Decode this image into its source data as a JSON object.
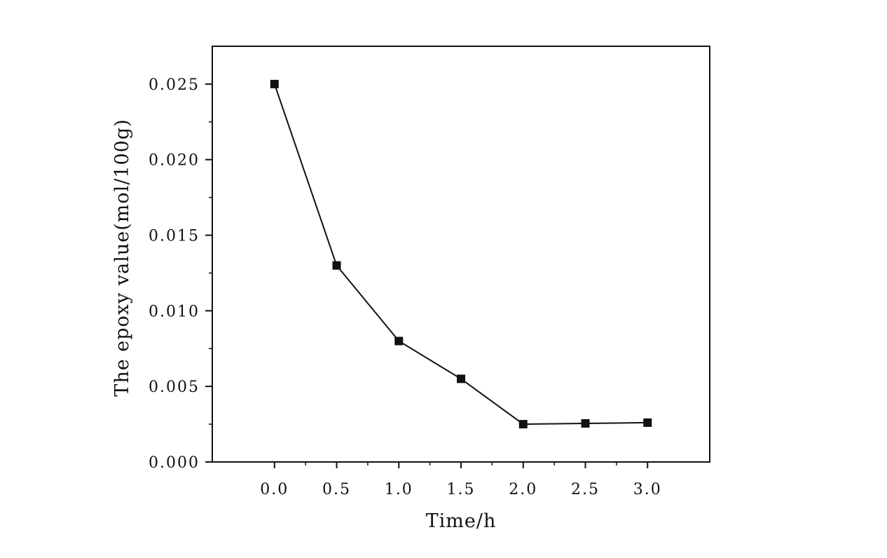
{
  "chart_data": {
    "type": "line",
    "title": "",
    "xlabel": "Time/h",
    "ylabel": "The epoxy value(mol/100g)",
    "xlim": [
      -0.5,
      3.5
    ],
    "ylim": [
      0,
      0.0275
    ],
    "xticks": [
      0.0,
      0.5,
      1.0,
      1.5,
      2.0,
      2.5,
      3.0
    ],
    "xtick_labels": [
      "0.0",
      "0.5",
      "1.0",
      "1.5",
      "2.0",
      "2.5",
      "3.0"
    ],
    "yticks": [
      0.0,
      0.005,
      0.01,
      0.015,
      0.02,
      0.025
    ],
    "ytick_labels": [
      "0.000",
      "0.005",
      "0.010",
      "0.015",
      "0.020",
      "0.025"
    ],
    "grid": false,
    "legend": "none",
    "marker": "square",
    "line_color": "#111111",
    "series": [
      {
        "x": [
          0.0,
          0.5,
          1.0,
          1.5,
          2.0,
          2.5,
          3.0
        ],
        "values": [
          0.025,
          0.013,
          0.008,
          0.0055,
          0.0025,
          0.00255,
          0.0026
        ]
      }
    ]
  }
}
